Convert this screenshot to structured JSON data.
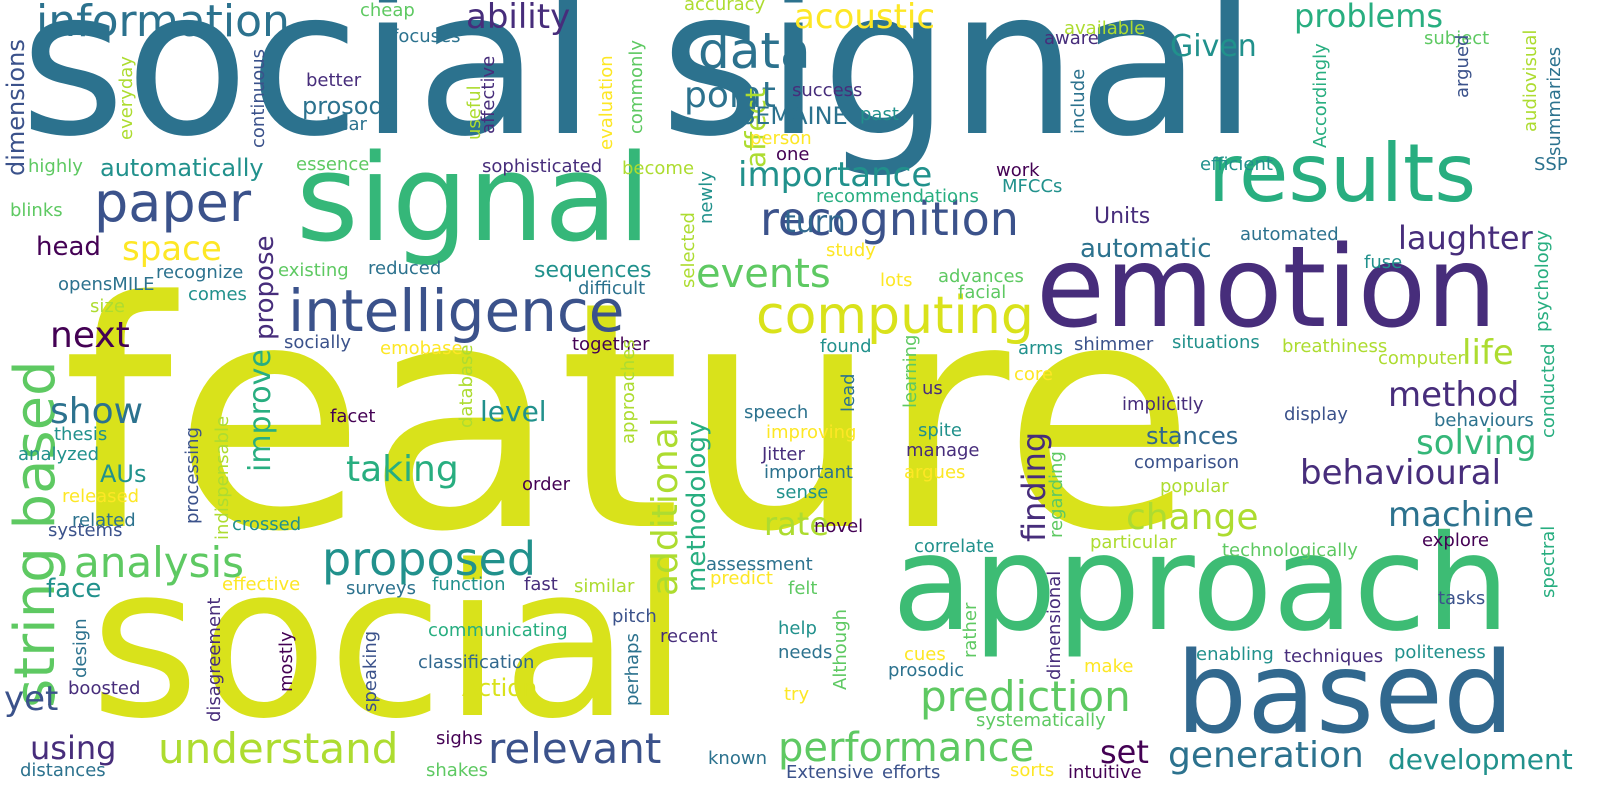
{
  "palette": {
    "dark_purple": "#440154",
    "indigo": "#472d7b",
    "blue": "#3b528b",
    "steel_blue": "#2c728e",
    "teal": "#21918c",
    "sea_green": "#28ae80",
    "green": "#5ec962",
    "lime": "#addc30",
    "yellow": "#d9e21b",
    "bright_yellow": "#fde725"
  },
  "words": [
    {
      "text": "feature",
      "color": "#d9e21b"
    },
    {
      "text": "social signal",
      "color": "#2c728e"
    },
    {
      "text": "social",
      "color": "#d9e21b"
    },
    {
      "text": "signal",
      "color": "#35b779"
    },
    {
      "text": "approach",
      "color": "#3dbc74"
    },
    {
      "text": "emotion",
      "color": "#472d7b"
    },
    {
      "text": "based",
      "color": "#31688e"
    },
    {
      "text": "results",
      "color": "#28ae80"
    },
    {
      "text": "string based",
      "color": "#5ec962"
    },
    {
      "text": "intelligence",
      "color": "#3b528b"
    },
    {
      "text": "recognition",
      "color": "#3b528b"
    },
    {
      "text": "information",
      "color": "#2c728e"
    },
    {
      "text": "paper",
      "color": "#3b528b"
    },
    {
      "text": "data",
      "color": "#2c728e"
    },
    {
      "text": "computing",
      "color": "#d9e21b"
    },
    {
      "text": "proposed",
      "color": "#21918c"
    },
    {
      "text": "analysis",
      "color": "#5ec962"
    },
    {
      "text": "understand",
      "color": "#addc30"
    },
    {
      "text": "prediction",
      "color": "#5ec962"
    },
    {
      "text": "performance",
      "color": "#5ec962"
    },
    {
      "text": "relevant",
      "color": "#3b528b"
    },
    {
      "text": "generation",
      "color": "#2c728e"
    },
    {
      "text": "development",
      "color": "#21918c"
    },
    {
      "text": "events",
      "color": "#5ec962"
    },
    {
      "text": "importance",
      "color": "#21918c"
    },
    {
      "text": "acoustic",
      "color": "#fde725"
    },
    {
      "text": "ability",
      "color": "#472d7b"
    },
    {
      "text": "Given",
      "color": "#21918c"
    },
    {
      "text": "problems",
      "color": "#28ae80"
    },
    {
      "text": "point",
      "color": "#2c728e"
    },
    {
      "text": "space",
      "color": "#fde725"
    },
    {
      "text": "next",
      "color": "#440154"
    },
    {
      "text": "show",
      "color": "#2c728e"
    },
    {
      "text": "taking",
      "color": "#28ae80"
    },
    {
      "text": "change",
      "color": "#addc30"
    },
    {
      "text": "method",
      "color": "#472d7b"
    },
    {
      "text": "machine",
      "color": "#2c728e"
    },
    {
      "text": "behavioural",
      "color": "#472d7b"
    },
    {
      "text": "solving",
      "color": "#35b779"
    },
    {
      "text": "life",
      "color": "#addc30"
    },
    {
      "text": "laughter",
      "color": "#472d7b"
    },
    {
      "text": "turn",
      "color": "#31688e"
    },
    {
      "text": "automatic",
      "color": "#2c728e"
    },
    {
      "text": "finding",
      "color": "#472d7b"
    },
    {
      "text": "rate",
      "color": "#addc30"
    },
    {
      "text": "level",
      "color": "#21918c"
    },
    {
      "text": "stances",
      "color": "#31688e"
    },
    {
      "text": "set",
      "color": "#440154"
    },
    {
      "text": "using",
      "color": "#472d7b"
    },
    {
      "text": "yet",
      "color": "#3b528b"
    },
    {
      "text": "face",
      "color": "#21918c"
    },
    {
      "text": "head",
      "color": "#440154"
    },
    {
      "text": "additional",
      "color": "#addc30"
    },
    {
      "text": "methodology",
      "color": "#28ae80"
    },
    {
      "text": "improve",
      "color": "#28ae80"
    },
    {
      "text": "propose",
      "color": "#472d7b"
    },
    {
      "text": "affect",
      "color": "#addc30"
    },
    {
      "text": "Action",
      "color": "#d9e21b"
    },
    {
      "text": "sequences",
      "color": "#21918c"
    },
    {
      "text": "prosody",
      "color": "#2c728e"
    },
    {
      "text": "SEMAINE",
      "color": "#2c728e"
    },
    {
      "text": "automatically",
      "color": "#21918c"
    },
    {
      "text": "Units",
      "color": "#472d7b"
    },
    {
      "text": "dimensions",
      "color": "#3b528b"
    },
    {
      "text": "AUs",
      "color": "#21918c"
    },
    {
      "text": "opensMILE",
      "color": "#2c728e"
    },
    {
      "text": "recognize",
      "color": "#2c728e"
    },
    {
      "text": "existing",
      "color": "#5ec962"
    },
    {
      "text": "reduced",
      "color": "#2c728e"
    },
    {
      "text": "difficult",
      "color": "#2c728e"
    },
    {
      "text": "highly",
      "color": "#5ec962"
    },
    {
      "text": "essence",
      "color": "#5ec962"
    },
    {
      "text": "blinks",
      "color": "#5ec962"
    },
    {
      "text": "size",
      "color": "#addc30"
    },
    {
      "text": "comes",
      "color": "#21918c"
    },
    {
      "text": "cheap",
      "color": "#5ec962"
    },
    {
      "text": "focuses",
      "color": "#2c728e"
    },
    {
      "text": "accuracy",
      "color": "#addc30"
    },
    {
      "text": "better",
      "color": "#472d7b"
    },
    {
      "text": "bear",
      "color": "#2c728e"
    },
    {
      "text": "continuous",
      "color": "#3b528b"
    },
    {
      "text": "everyday",
      "color": "#addc30"
    },
    {
      "text": "useful",
      "color": "#addc30"
    },
    {
      "text": "affective",
      "color": "#472d7b"
    },
    {
      "text": "evaluation",
      "color": "#fde725"
    },
    {
      "text": "commonly",
      "color": "#5ec962"
    },
    {
      "text": "success",
      "color": "#472d7b"
    },
    {
      "text": "past",
      "color": "#21918c"
    },
    {
      "text": "person",
      "color": "#fde725"
    },
    {
      "text": "one",
      "color": "#440154"
    },
    {
      "text": "sophisticated",
      "color": "#472d7b"
    },
    {
      "text": "become",
      "color": "#addc30"
    },
    {
      "text": "work",
      "color": "#440154"
    },
    {
      "text": "MFCCs",
      "color": "#21918c"
    },
    {
      "text": "recommendations",
      "color": "#28ae80"
    },
    {
      "text": "newly",
      "color": "#21918c"
    },
    {
      "text": "selected",
      "color": "#addc30"
    },
    {
      "text": "study",
      "color": "#fde725"
    },
    {
      "text": "lots",
      "color": "#fde725"
    },
    {
      "text": "advances",
      "color": "#5ec962"
    },
    {
      "text": "facial",
      "color": "#5ec962"
    },
    {
      "text": "available",
      "color": "#addc30"
    },
    {
      "text": "aware",
      "color": "#472d7b"
    },
    {
      "text": "include",
      "color": "#2c728e"
    },
    {
      "text": "Accordingly",
      "color": "#28ae80"
    },
    {
      "text": "subject",
      "color": "#5ec962"
    },
    {
      "text": "argued",
      "color": "#3b528b"
    },
    {
      "text": "audiovisual",
      "color": "#addc30"
    },
    {
      "text": "summarizes",
      "color": "#2c728e"
    },
    {
      "text": "efficient",
      "color": "#21918c"
    },
    {
      "text": "SSP",
      "color": "#2c728e"
    },
    {
      "text": "automated",
      "color": "#2c728e"
    },
    {
      "text": "fuse",
      "color": "#21918c"
    },
    {
      "text": "psychology",
      "color": "#28ae80"
    },
    {
      "text": "socially",
      "color": "#3b528b"
    },
    {
      "text": "emobase",
      "color": "#fde725"
    },
    {
      "text": "together",
      "color": "#440154"
    },
    {
      "text": "found",
      "color": "#21918c"
    },
    {
      "text": "arms",
      "color": "#21918c"
    },
    {
      "text": "shimmer",
      "color": "#3b528b"
    },
    {
      "text": "situations",
      "color": "#21918c"
    },
    {
      "text": "breathiness",
      "color": "#addc30"
    },
    {
      "text": "computer",
      "color": "#addc30"
    },
    {
      "text": "conducted",
      "color": "#28ae80"
    },
    {
      "text": "learning",
      "color": "#5ec962"
    },
    {
      "text": "us",
      "color": "#472d7b"
    },
    {
      "text": "core",
      "color": "#fde725"
    },
    {
      "text": "lead",
      "color": "#2c728e"
    },
    {
      "text": "implicitly",
      "color": "#472d7b"
    },
    {
      "text": "display",
      "color": "#3b528b"
    },
    {
      "text": "behaviours",
      "color": "#2c728e"
    },
    {
      "text": "spectral",
      "color": "#28ae80"
    },
    {
      "text": "speech",
      "color": "#2c728e"
    },
    {
      "text": "improving",
      "color": "#fde725"
    },
    {
      "text": "spite",
      "color": "#21918c"
    },
    {
      "text": "manage",
      "color": "#472d7b"
    },
    {
      "text": "Jitter",
      "color": "#472d7b"
    },
    {
      "text": "important",
      "color": "#2c728e"
    },
    {
      "text": "sense",
      "color": "#21918c"
    },
    {
      "text": "argues",
      "color": "#fde725"
    },
    {
      "text": "regarding",
      "color": "#5ec962"
    },
    {
      "text": "comparison",
      "color": "#3b528b"
    },
    {
      "text": "popular",
      "color": "#addc30"
    },
    {
      "text": "facet",
      "color": "#440154"
    },
    {
      "text": "order",
      "color": "#440154"
    },
    {
      "text": "database",
      "color": "#addc30"
    },
    {
      "text": "approaches",
      "color": "#addc30"
    },
    {
      "text": "thesis",
      "color": "#21918c"
    },
    {
      "text": "analyzed",
      "color": "#21918c"
    },
    {
      "text": "released",
      "color": "#fde725"
    },
    {
      "text": "related",
      "color": "#2c728e"
    },
    {
      "text": "systems",
      "color": "#3b528b"
    },
    {
      "text": "processing",
      "color": "#3b528b"
    },
    {
      "text": "indispensable",
      "color": "#addc30"
    },
    {
      "text": "crossed",
      "color": "#21918c"
    },
    {
      "text": "novel",
      "color": "#440154"
    },
    {
      "text": "correlate",
      "color": "#21918c"
    },
    {
      "text": "particular",
      "color": "#addc30"
    },
    {
      "text": "technologically",
      "color": "#5ec962"
    },
    {
      "text": "explore",
      "color": "#440154"
    },
    {
      "text": "effective",
      "color": "#fde725"
    },
    {
      "text": "surveys",
      "color": "#2c728e"
    },
    {
      "text": "function",
      "color": "#21918c"
    },
    {
      "text": "fast",
      "color": "#472d7b"
    },
    {
      "text": "similar",
      "color": "#addc30"
    },
    {
      "text": "predict",
      "color": "#fde725"
    },
    {
      "text": "assessment",
      "color": "#2c728e"
    },
    {
      "text": "felt",
      "color": "#5ec962"
    },
    {
      "text": "design",
      "color": "#2c728e"
    },
    {
      "text": "disagreement",
      "color": "#472d7b"
    },
    {
      "text": "mostly",
      "color": "#440154"
    },
    {
      "text": "speaking",
      "color": "#3b528b"
    },
    {
      "text": "communicating",
      "color": "#28ae80"
    },
    {
      "text": "pitch",
      "color": "#3b528b"
    },
    {
      "text": "perhaps",
      "color": "#2c728e"
    },
    {
      "text": "recent",
      "color": "#472d7b"
    },
    {
      "text": "help",
      "color": "#21918c"
    },
    {
      "text": "needs",
      "color": "#2c728e"
    },
    {
      "text": "Although",
      "color": "#5ec962"
    },
    {
      "text": "cues",
      "color": "#fde725"
    },
    {
      "text": "rather",
      "color": "#5ec962"
    },
    {
      "text": "dimensional",
      "color": "#472d7b"
    },
    {
      "text": "prosodic",
      "color": "#2c728e"
    },
    {
      "text": "make",
      "color": "#fde725"
    },
    {
      "text": "enabling",
      "color": "#21918c"
    },
    {
      "text": "techniques",
      "color": "#472d7b"
    },
    {
      "text": "politeness",
      "color": "#21918c"
    },
    {
      "text": "tasks",
      "color": "#3b528b"
    },
    {
      "text": "boosted",
      "color": "#472d7b"
    },
    {
      "text": "classification",
      "color": "#31688e"
    },
    {
      "text": "try",
      "color": "#fde725"
    },
    {
      "text": "systematically",
      "color": "#5ec962"
    },
    {
      "text": "sighs",
      "color": "#440154"
    },
    {
      "text": "shakes",
      "color": "#5ec962"
    },
    {
      "text": "known",
      "color": "#2c728e"
    },
    {
      "text": "Extensive",
      "color": "#3b528b"
    },
    {
      "text": "efforts",
      "color": "#3b528b"
    },
    {
      "text": "sorts",
      "color": "#fde725"
    },
    {
      "text": "intuitive",
      "color": "#440154"
    },
    {
      "text": "distances",
      "color": "#2c728e"
    }
  ]
}
